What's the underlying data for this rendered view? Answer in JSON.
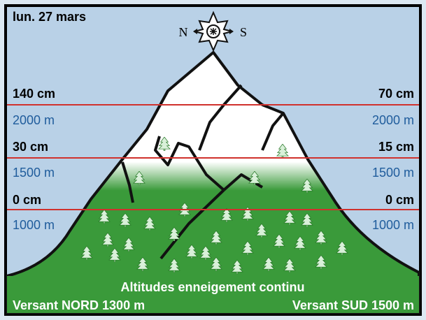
{
  "date": "lun. 27 mars",
  "compass": {
    "north": "N",
    "south": "S"
  },
  "levels": [
    {
      "north_depth": "140 cm",
      "altitude_north": "2000 m",
      "south_depth": "70 cm",
      "altitude_south": "2000 m"
    },
    {
      "north_depth": "30 cm",
      "altitude_north": "1500 m",
      "south_depth": "15 cm",
      "altitude_south": "1500 m"
    },
    {
      "north_depth": "0 cm",
      "altitude_north": "1000 m",
      "south_depth": "0 cm",
      "altitude_south": "1000 m"
    }
  ],
  "footer": {
    "title": "Altitudes enneigement continu",
    "north": "Versant NORD 1300 m",
    "south": "Versant SUD 1500 m"
  }
}
